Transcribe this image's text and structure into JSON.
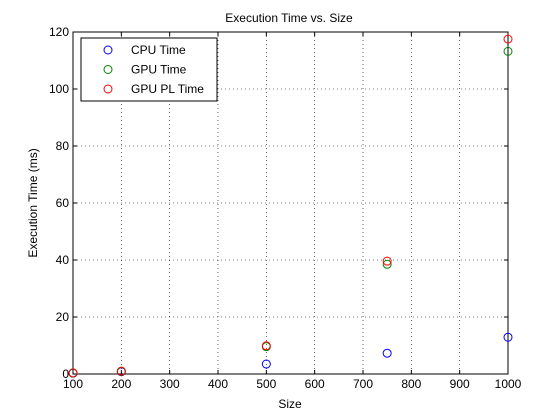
{
  "chart_data": {
    "type": "scatter",
    "title": "Execution Time vs. Size",
    "xlabel": "Size",
    "ylabel": "Execution Time (ms)",
    "xlim": [
      100,
      1000
    ],
    "ylim": [
      0,
      120
    ],
    "xticks": [
      100,
      200,
      300,
      400,
      500,
      600,
      700,
      800,
      900,
      1000
    ],
    "yticks": [
      0,
      20,
      40,
      60,
      80,
      100,
      120
    ],
    "grid": true,
    "legend_position": "top-left",
    "series": [
      {
        "name": "CPU Time",
        "color": "#0000ff",
        "x": [
          100,
          200,
          500,
          750,
          1000
        ],
        "y": [
          0.3,
          0.8,
          3.5,
          7.3,
          12.9
        ]
      },
      {
        "name": "GPU Time",
        "color": "#008000",
        "x": [
          100,
          200,
          500,
          750,
          1000
        ],
        "y": [
          0.3,
          0.9,
          9.6,
          38.5,
          113.2
        ]
      },
      {
        "name": "GPU PL Time",
        "color": "#ff0000",
        "x": [
          100,
          200,
          500,
          750,
          1000
        ],
        "y": [
          0.4,
          1.0,
          9.9,
          39.6,
          117.5
        ]
      }
    ]
  }
}
